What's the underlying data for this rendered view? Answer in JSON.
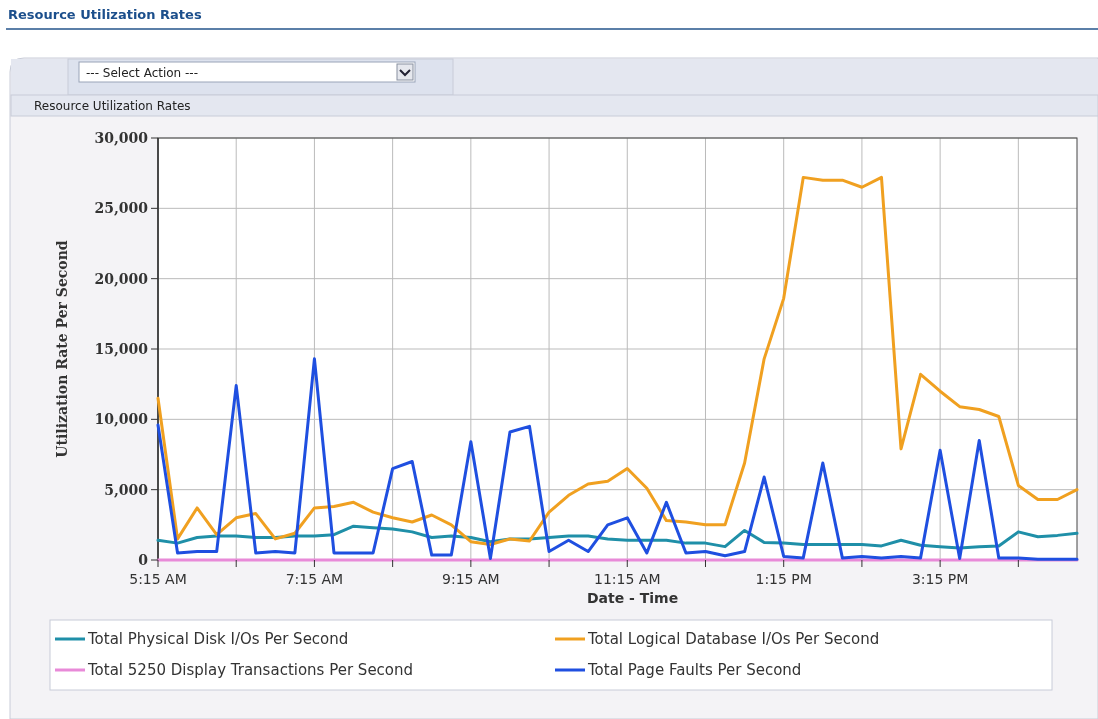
{
  "chart_data": {
    "type": "line",
    "title": "Resource Utilization Rates",
    "subtitle": "Resource Utilization Rates",
    "annotations": [
      "--- Select Action ---"
    ],
    "xlabel": "Date - Time",
    "ylabel": "Utilization Rate Per Second",
    "x": [
      5.25,
      5.5,
      5.75,
      6,
      6.25,
      6.5,
      6.75,
      7,
      7.25,
      7.5,
      7.75,
      8,
      8.25,
      8.5,
      8.75,
      9,
      9.25,
      9.5,
      9.75,
      10,
      10.25,
      10.5,
      10.75,
      11,
      11.25,
      11.5,
      11.75,
      12,
      12.25,
      12.5,
      12.75,
      13,
      13.25,
      13.5,
      13.75,
      14,
      14.25,
      14.5,
      14.75,
      15,
      15.25,
      15.5,
      15.75,
      16,
      16.25,
      16.5,
      16.75,
      17
    ],
    "xlim": [
      5.25,
      17
    ],
    "xticks": [
      {
        "value": 5.25,
        "label": "5:15 AM"
      },
      {
        "value": 6.25,
        "label": null
      },
      {
        "value": 7.25,
        "label": "7:15 AM"
      },
      {
        "value": 8.25,
        "label": null
      },
      {
        "value": 9.25,
        "label": "9:15 AM"
      },
      {
        "value": 10.25,
        "label": null
      },
      {
        "value": 11.25,
        "label": "11:15 AM"
      },
      {
        "value": 12.25,
        "label": null
      },
      {
        "value": 13.25,
        "label": "1:15 PM"
      },
      {
        "value": 14.25,
        "label": null
      },
      {
        "value": 15.25,
        "label": "3:15 PM"
      },
      {
        "value": 16.25,
        "label": null
      }
    ],
    "ylim": [
      0,
      30000
    ],
    "yticks": [
      {
        "value": 0,
        "label": "0"
      },
      {
        "value": 5000,
        "label": "5,000"
      },
      {
        "value": 10000,
        "label": "10,000"
      },
      {
        "value": 15000,
        "label": "15,000"
      },
      {
        "value": 20000,
        "label": "20,000"
      },
      {
        "value": 25000,
        "label": "25,000"
      },
      {
        "value": 30000,
        "label": "30,000"
      }
    ],
    "grid": true,
    "legend": "bottom",
    "marker": "none",
    "line_style": "solid",
    "series": [
      {
        "name": "Total Physical Disk I/Os Per Second",
        "color": "#1f8fa8",
        "values": [
          1400,
          1200,
          1600,
          1700,
          1700,
          1600,
          1600,
          1700,
          1700,
          1800,
          2400,
          2300,
          2200,
          2000,
          1600,
          1700,
          1600,
          1300,
          1500,
          1500,
          1600,
          1700,
          1700,
          1500,
          1400,
          1400,
          1400,
          1200,
          1200,
          950,
          2100,
          1250,
          1200,
          1100,
          1100,
          1100,
          1100,
          1000,
          1400,
          1050,
          950,
          850,
          950,
          1000,
          2000,
          1650,
          1750,
          1900
        ]
      },
      {
        "name": "Total Logical Database I/Os Per Second",
        "color": "#f0a020",
        "values": [
          11500,
          1500,
          3700,
          1800,
          3000,
          3300,
          1500,
          1900,
          3700,
          3800,
          4100,
          3400,
          3000,
          2700,
          3200,
          2500,
          1300,
          1100,
          1500,
          1350,
          3400,
          4600,
          5400,
          5600,
          6500,
          5100,
          2800,
          2700,
          2500,
          2500,
          6900,
          14300,
          18600,
          27200,
          27000,
          27000,
          26500,
          27200,
          7900,
          13200,
          12000,
          10900,
          10700,
          10200,
          5300,
          4300,
          4300,
          5000
        ]
      },
      {
        "name": "Total 5250 Display Transactions Per Second",
        "color": "#e88ad8",
        "values": [
          0,
          0,
          0,
          0,
          0,
          0,
          0,
          0,
          0,
          0,
          0,
          0,
          0,
          0,
          0,
          0,
          0,
          0,
          0,
          0,
          0,
          0,
          0,
          0,
          0,
          0,
          0,
          0,
          0,
          0,
          0,
          0,
          0,
          0,
          0,
          0,
          0,
          0,
          0,
          0,
          0,
          0,
          0,
          0,
          0,
          0,
          0,
          0
        ]
      },
      {
        "name": "Total Page Faults Per Second",
        "color": "#1f4fe0",
        "values": [
          9600,
          500,
          600,
          600,
          12400,
          500,
          600,
          500,
          14300,
          500,
          500,
          500,
          6500,
          7000,
          350,
          350,
          8400,
          100,
          9100,
          9500,
          600,
          1400,
          600,
          2500,
          3000,
          500,
          4100,
          500,
          600,
          300,
          600,
          5900,
          250,
          150,
          6900,
          150,
          250,
          150,
          250,
          150,
          7800,
          100,
          8500,
          150,
          150,
          50,
          50,
          50
        ]
      }
    ]
  }
}
